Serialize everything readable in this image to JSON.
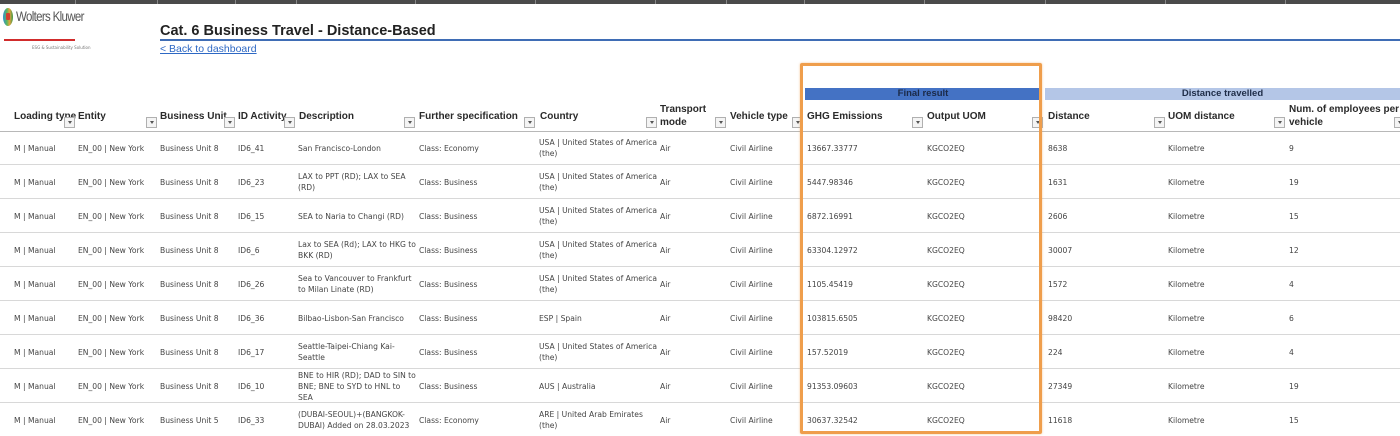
{
  "brand": {
    "logo_text": "Wolters Kluwer",
    "logo_subtitle": "ESG & Sustainability Solution"
  },
  "page": {
    "title": "Cat. 6 Business Travel - Distance-Based",
    "back_link": "< Back to dashboard"
  },
  "groups": {
    "final_result": "Final result",
    "distance_travelled": "Distance travelled"
  },
  "columns": [
    {
      "key": "loading_type",
      "label": "Loading type"
    },
    {
      "key": "entity",
      "label": "Entity"
    },
    {
      "key": "business_unit",
      "label": "Business Unit"
    },
    {
      "key": "id_activity",
      "label": "ID Activity"
    },
    {
      "key": "description",
      "label": "Description"
    },
    {
      "key": "further_spec",
      "label": "Further specification"
    },
    {
      "key": "country",
      "label": "Country"
    },
    {
      "key": "transport_mode",
      "label": "Transport mode"
    },
    {
      "key": "vehicle_type",
      "label": "Vehicle type"
    },
    {
      "key": "ghg_emissions",
      "label": "GHG Emissions"
    },
    {
      "key": "output_uom",
      "label": "Output UOM"
    },
    {
      "key": "distance",
      "label": "Distance"
    },
    {
      "key": "uom_distance",
      "label": "UOM distance"
    },
    {
      "key": "num_employees",
      "label": "Num. of employees per vehicle"
    }
  ],
  "rows": [
    {
      "loading_type": "M | Manual",
      "entity": "EN_00 | New York",
      "business_unit": "Business Unit 8",
      "id_activity": "ID6_41",
      "description": "San Francisco-London",
      "further_spec": "Class: Economy",
      "country": "USA | United States of America (the)",
      "transport_mode": "Air",
      "vehicle_type": "Civil Airline",
      "ghg_emissions": "13667.33777",
      "output_uom": "KGCO2EQ",
      "distance": "8638",
      "uom_distance": "Kilometre",
      "num_employees": "9"
    },
    {
      "loading_type": "M | Manual",
      "entity": "EN_00 | New York",
      "business_unit": "Business Unit 8",
      "id_activity": "ID6_23",
      "description": "LAX to PPT (RD); LAX to SEA (RD)",
      "further_spec": "Class: Business",
      "country": "USA | United States of America (the)",
      "transport_mode": "Air",
      "vehicle_type": "Civil Airline",
      "ghg_emissions": "5447.98346",
      "output_uom": "KGCO2EQ",
      "distance": "1631",
      "uom_distance": "Kilometre",
      "num_employees": "19"
    },
    {
      "loading_type": "M | Manual",
      "entity": "EN_00 | New York",
      "business_unit": "Business Unit 8",
      "id_activity": "ID6_15",
      "description": "SEA to Naria to Changi (RD)",
      "further_spec": "Class: Business",
      "country": "USA | United States of America (the)",
      "transport_mode": "Air",
      "vehicle_type": "Civil Airline",
      "ghg_emissions": "6872.16991",
      "output_uom": "KGCO2EQ",
      "distance": "2606",
      "uom_distance": "Kilometre",
      "num_employees": "15"
    },
    {
      "loading_type": "M | Manual",
      "entity": "EN_00 | New York",
      "business_unit": "Business Unit 8",
      "id_activity": "ID6_6",
      "description": "Lax to SEA (Rd); LAX to HKG to BKK (RD)",
      "further_spec": "Class: Business",
      "country": "USA | United States of America (the)",
      "transport_mode": "Air",
      "vehicle_type": "Civil Airline",
      "ghg_emissions": "63304.12972",
      "output_uom": "KGCO2EQ",
      "distance": "30007",
      "uom_distance": "Kilometre",
      "num_employees": "12"
    },
    {
      "loading_type": "M | Manual",
      "entity": "EN_00 | New York",
      "business_unit": "Business Unit 8",
      "id_activity": "ID6_26",
      "description": "Sea to Vancouver to Frankfurt to Milan Linate (RD)",
      "further_spec": "Class: Business",
      "country": "USA | United States of America (the)",
      "transport_mode": "Air",
      "vehicle_type": "Civil Airline",
      "ghg_emissions": "1105.45419",
      "output_uom": "KGCO2EQ",
      "distance": "1572",
      "uom_distance": "Kilometre",
      "num_employees": "4"
    },
    {
      "loading_type": "M | Manual",
      "entity": "EN_00 | New York",
      "business_unit": "Business Unit 8",
      "id_activity": "ID6_36",
      "description": "Bilbao-Lisbon-San Francisco",
      "further_spec": "Class: Business",
      "country": "ESP | Spain",
      "transport_mode": "Air",
      "vehicle_type": "Civil Airline",
      "ghg_emissions": "103815.6505",
      "output_uom": "KGCO2EQ",
      "distance": "98420",
      "uom_distance": "Kilometre",
      "num_employees": "6"
    },
    {
      "loading_type": "M | Manual",
      "entity": "EN_00 | New York",
      "business_unit": "Business Unit 8",
      "id_activity": "ID6_17",
      "description": "Seattle-Taipei-Chiang Kai-Seattle",
      "further_spec": "Class: Business",
      "country": "USA | United States of America (the)",
      "transport_mode": "Air",
      "vehicle_type": "Civil Airline",
      "ghg_emissions": "157.52019",
      "output_uom": "KGCO2EQ",
      "distance": "224",
      "uom_distance": "Kilometre",
      "num_employees": "4"
    },
    {
      "loading_type": "M | Manual",
      "entity": "EN_00 | New York",
      "business_unit": "Business Unit 8",
      "id_activity": "ID6_10",
      "description": "BNE to HIR (RD); DAD to SIN to BNE; BNE to SYD to HNL to SEA",
      "further_spec": "Class: Business",
      "country": "AUS | Australia",
      "transport_mode": "Air",
      "vehicle_type": "Civil Airline",
      "ghg_emissions": "91353.09603",
      "output_uom": "KGCO2EQ",
      "distance": "27349",
      "uom_distance": "Kilometre",
      "num_employees": "19"
    },
    {
      "loading_type": "M | Manual",
      "entity": "EN_00 | New York",
      "business_unit": "Business Unit 5",
      "id_activity": "ID6_33",
      "description": "(DUBAI-SEOUL)+(BANGKOK-DUBAI) Added on 28.03.2023",
      "further_spec": "Class: Economy",
      "country": "ARE | United Arab Emirates (the)",
      "transport_mode": "Air",
      "vehicle_type": "Civil Airline",
      "ghg_emissions": "30637.32542",
      "output_uom": "KGCO2EQ",
      "distance": "11618",
      "uom_distance": "Kilometre",
      "num_employees": "15"
    }
  ],
  "highlight": {
    "color": "#ef9e4c",
    "target": "Final result"
  },
  "colors": {
    "final_result_header": "#4472c4",
    "distance_header": "#b4c6e7",
    "title_rule": "#3f6db5",
    "link": "#2d68c4"
  }
}
